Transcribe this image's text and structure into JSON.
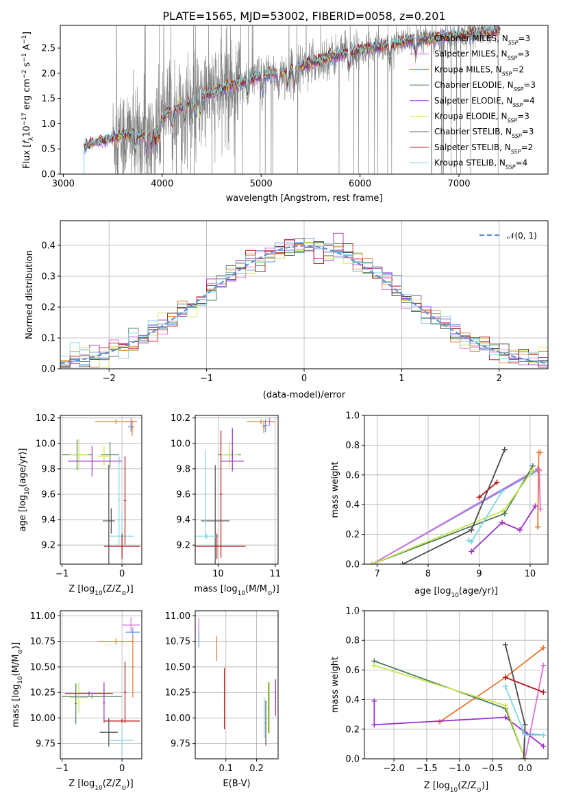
{
  "colors": {
    "Chabrier MILES": "#6495ed",
    "Salpeter MILES": "#da70d6",
    "Kroupa MILES": "#e8782a",
    "Chabrier ELODIE": "#4e7d5a",
    "Salpeter ELODIE": "#9b30c8",
    "Kroupa ELODIE": "#c8e650",
    "Chabrier STELIB": "#4a4a4a",
    "Salpeter STELIB": "#b31313",
    "Kroupa STELIB": "#7fd6e2",
    "data": "#808080",
    "normal": "#5b8fd9"
  },
  "chart_data": [
    {
      "id": "spectrum",
      "type": "line",
      "title": "PLATE=1565, MJD=53002, FIBERID=0058, z=0.201",
      "xlabel": "wavelength [Angstrom, rest frame]",
      "ylabel": "Flux [f_λ10^-17 erg cm^-2 s^-1 A^-1]",
      "xlim": [
        2970,
        7900
      ],
      "ylim": [
        0,
        2.95
      ],
      "xticks": [
        3000,
        4000,
        5000,
        6000,
        7000
      ],
      "yticks": [
        0.0,
        0.5,
        1.0,
        1.5,
        2.0,
        2.5
      ],
      "grid": false,
      "legend_position": "top-right",
      "legend": [
        {
          "label": "Chabrier MILES, N",
          "sub": "SSP",
          "tail": "=3",
          "color": "#6495ed"
        },
        {
          "label": "Salpeter MILES, N",
          "sub": "SSP",
          "tail": "=3",
          "color": "#da70d6"
        },
        {
          "label": "Kroupa MILES, N",
          "sub": "SSP",
          "tail": "=2",
          "color": "#e8782a"
        },
        {
          "label": "Chabrier ELODIE, N",
          "sub": "SSP",
          "tail": "=3",
          "color": "#4e7d5a"
        },
        {
          "label": "Salpeter ELODIE, N",
          "sub": "SSP",
          "tail": "=4",
          "color": "#9b30c8"
        },
        {
          "label": "Kroupa ELODIE, N",
          "sub": "SSP",
          "tail": "=3",
          "color": "#c8e650"
        },
        {
          "label": "Chabrier STELIB, N",
          "sub": "SSP",
          "tail": "=3",
          "color": "#4a4a4a"
        },
        {
          "label": "Salpeter STELIB, N",
          "sub": "SSP",
          "tail": "=2",
          "color": "#b31313"
        },
        {
          "label": "Kroupa STELIB, N",
          "sub": "SSP",
          "tail": "=4",
          "color": "#7fd6e2"
        }
      ],
      "continuum": [
        [
          3210,
          0.55
        ],
        [
          3300,
          0.6
        ],
        [
          3500,
          0.72
        ],
        [
          3700,
          0.8
        ],
        [
          3850,
          0.75
        ],
        [
          3950,
          0.95
        ],
        [
          4050,
          1.2
        ],
        [
          4250,
          1.4
        ],
        [
          4500,
          1.6
        ],
        [
          4750,
          1.8
        ],
        [
          5000,
          1.95
        ],
        [
          5250,
          2.05
        ],
        [
          5500,
          2.2
        ],
        [
          5750,
          2.35
        ],
        [
          6000,
          2.45
        ],
        [
          6250,
          2.55
        ],
        [
          6500,
          2.65
        ],
        [
          6750,
          2.7
        ],
        [
          7000,
          2.75
        ],
        [
          7250,
          2.8
        ],
        [
          7420,
          2.85
        ]
      ],
      "data_range": [
        3500,
        7400
      ],
      "models_range": [
        3210,
        7420
      ]
    },
    {
      "id": "residuals",
      "type": "histogram",
      "xlabel": "(data-model)/error",
      "ylabel": "Normed distribution",
      "xlim": [
        -2.5,
        2.5
      ],
      "ylim": [
        0,
        0.48
      ],
      "xticks": [
        -2,
        -1,
        0,
        1,
        2
      ],
      "yticks": [
        0.0,
        0.1,
        0.2,
        0.3,
        0.4
      ],
      "grid": true,
      "legend_position": "top-right",
      "legend": [
        {
          "label": "𝒩(0, 1)",
          "color": "#5b8fd9",
          "style": "dashed"
        }
      ],
      "bin_width": 0.1,
      "normal_curve": {
        "mean": 0,
        "sigma": 1
      }
    },
    {
      "id": "age-vs-metallicity",
      "type": "errorbar",
      "xlabel": "Z [log10(Z/Z⊙)]",
      "ylabel": "age  [log10(age/yr)]",
      "xlim": [
        -1.03,
        0.33
      ],
      "ylim": [
        9.05,
        10.22
      ],
      "xticks": [
        -1,
        0
      ],
      "yticks": [
        9.2,
        9.4,
        9.6,
        9.8,
        10.0,
        10.2
      ],
      "grid": true,
      "points": [
        {
          "series": "Salpeter MILES",
          "x": 0.15,
          "y": 10.17,
          "xerr": 0.1,
          "yerr": 0.03
        },
        {
          "series": "Kroupa MILES",
          "x": -0.1,
          "y": 10.17,
          "xerr": 0.35,
          "yerr": 0.02
        },
        {
          "series": "Chabrier MILES",
          "x": 0.15,
          "y": 10.13,
          "xerr": 0.05,
          "yerr": 0.04
        },
        {
          "series": "Kroupa MILES",
          "x": 0.17,
          "y": 10.12,
          "xerr": 0.02,
          "yerr": 0.06
        },
        {
          "series": "Chabrier ELODIE",
          "x": -0.75,
          "y": 9.91,
          "xerr": 0.25,
          "yerr": 0.12
        },
        {
          "series": "Kroupa ELODIE",
          "x": -0.72,
          "y": 9.91,
          "xerr": 0.15,
          "yerr": 0.12
        },
        {
          "series": "Chabrier ELODIE",
          "x": -0.2,
          "y": 9.91,
          "xerr": 0.15,
          "yerr": 0.1
        },
        {
          "series": "Kroupa ELODIE",
          "x": -0.3,
          "y": 9.9,
          "xerr": 0.1,
          "yerr": 0.08
        },
        {
          "series": "Salpeter ELODIE",
          "x": -0.5,
          "y": 9.86,
          "xerr": 0.4,
          "yerr": 0.12
        },
        {
          "series": "Salpeter ELODIE",
          "x": -0.05,
          "y": 9.86,
          "xerr": 0.05,
          "yerr": 0.02
        },
        {
          "series": "Chabrier STELIB",
          "x": -0.22,
          "y": 9.39,
          "xerr": 0.1,
          "yerr": 0.44
        },
        {
          "series": "Chabrier STELIB",
          "x": -0.18,
          "y": 9.39,
          "xerr": 0.02,
          "yerr": 0.1
        },
        {
          "series": "Kroupa STELIB",
          "x": 0.0,
          "y": 9.27,
          "xerr": 0.2,
          "yerr": 0.2
        },
        {
          "series": "Kroupa STELIB",
          "x": -0.05,
          "y": 9.55,
          "xerr": 0.02,
          "yerr": 0.35
        },
        {
          "series": "Salpeter STELIB",
          "x": 0.0,
          "y": 9.19,
          "xerr": 0.3,
          "yerr": 0.1
        },
        {
          "series": "Salpeter STELIB",
          "x": 0.05,
          "y": 9.55,
          "xerr": 0.02,
          "yerr": 0.35
        }
      ]
    },
    {
      "id": "age-vs-mass",
      "type": "errorbar",
      "xlabel": "mass [log10(M/M⊙)]",
      "ylabel": "",
      "xlim": [
        9.6,
        11.05
      ],
      "ylim": [
        9.05,
        10.22
      ],
      "xticks": [
        10,
        11
      ],
      "yticks": [
        9.2,
        9.4,
        9.6,
        9.8,
        10.0,
        10.2
      ],
      "grid": true,
      "points": [
        {
          "series": "Salpeter MILES",
          "x": 10.9,
          "y": 10.17,
          "xerr": 0.1,
          "yerr": 0.03
        },
        {
          "series": "Kroupa MILES",
          "x": 10.75,
          "y": 10.17,
          "xerr": 0.25,
          "yerr": 0.02
        },
        {
          "series": "Chabrier MILES",
          "x": 10.83,
          "y": 10.14,
          "xerr": 0.05,
          "yerr": 0.05
        },
        {
          "series": "Kroupa MILES",
          "x": 10.8,
          "y": 10.13,
          "xerr": 0.02,
          "yerr": 0.05
        },
        {
          "series": "Chabrier ELODIE",
          "x": 10.2,
          "y": 9.91,
          "xerr": 0.2,
          "yerr": 0.05
        },
        {
          "series": "Kroupa ELODIE",
          "x": 10.2,
          "y": 9.91,
          "xerr": 0.15,
          "yerr": 0.1
        },
        {
          "series": "Salpeter ELODIE",
          "x": 10.25,
          "y": 9.86,
          "xerr": 0.2,
          "yerr": 0.08
        },
        {
          "series": "Salpeter ELODIE",
          "x": 10.25,
          "y": 10.0,
          "xerr": 0.02,
          "yerr": 0.12
        },
        {
          "series": "Chabrier STELIB",
          "x": 9.95,
          "y": 9.39,
          "xerr": 0.25,
          "yerr": 0.44
        },
        {
          "series": "Kroupa STELIB",
          "x": 9.8,
          "y": 9.27,
          "xerr": 0.2,
          "yerr": 0.02
        },
        {
          "series": "Kroupa STELIB",
          "x": 9.78,
          "y": 9.6,
          "xerr": 0.02,
          "yerr": 0.35
        },
        {
          "series": "Salpeter STELIB",
          "x": 9.98,
          "y": 9.19,
          "xerr": 0.5,
          "yerr": 0.1
        },
        {
          "series": "Salpeter STELIB",
          "x": 10.05,
          "y": 9.6,
          "xerr": 0.02,
          "yerr": 0.5
        }
      ]
    },
    {
      "id": "weight-vs-age",
      "type": "line",
      "xlabel": "age  [log10(age/yr)]",
      "ylabel": "mass weight",
      "xlim": [
        6.75,
        10.35
      ],
      "ylim": [
        0,
        1.0
      ],
      "xticks": [
        7,
        8,
        9,
        10
      ],
      "yticks": [
        0.0,
        0.2,
        0.4,
        0.6,
        0.8,
        1.0
      ],
      "grid": true,
      "series": [
        {
          "name": "Chabrier MILES",
          "x": [
            6.9,
            10.15
          ],
          "y": [
            0.0,
            0.63
          ]
        },
        {
          "name": "Salpeter MILES",
          "x": [
            6.9,
            10.15,
            10.18,
            10.2
          ],
          "y": [
            0.0,
            0.64,
            0.63,
            0.37
          ]
        },
        {
          "name": "Kroupa MILES",
          "x": [
            10.15,
            10.17,
            10.2
          ],
          "y": [
            0.25,
            0.75,
            0.75
          ]
        },
        {
          "name": "Chabrier ELODIE",
          "x": [
            6.9,
            9.5,
            10.05
          ],
          "y": [
            0.0,
            0.34,
            0.66
          ]
        },
        {
          "name": "Salpeter ELODIE",
          "x": [
            8.85,
            9.45,
            9.8,
            10.1
          ],
          "y": [
            0.085,
            0.28,
            0.23,
            0.39
          ]
        },
        {
          "name": "Kroupa ELODIE",
          "x": [
            6.9,
            9.48,
            10.05
          ],
          "y": [
            0.0,
            0.36,
            0.63
          ]
        },
        {
          "name": "Chabrier STELIB",
          "x": [
            7.5,
            8.85,
            9.5
          ],
          "y": [
            0.0,
            0.23,
            0.77
          ]
        },
        {
          "name": "Salpeter STELIB",
          "x": [
            9.0,
            9.35
          ],
          "y": [
            0.45,
            0.55
          ]
        },
        {
          "name": "Kroupa STELIB",
          "x": [
            8.8,
            8.85,
            9.45
          ],
          "y": [
            0.16,
            0.15,
            0.49
          ]
        }
      ]
    },
    {
      "id": "mass-vs-metallicity",
      "type": "errorbar",
      "xlabel": "Z [log10(Z/Z⊙)]",
      "ylabel": "mass [log10(M/M⊙)]",
      "xlim": [
        -1.03,
        0.33
      ],
      "ylim": [
        9.6,
        11.05
      ],
      "xticks": [
        -1,
        0
      ],
      "yticks": [
        9.75,
        10.0,
        10.25,
        10.5,
        10.75,
        11.0
      ],
      "grid": true,
      "points": [
        {
          "series": "Salpeter MILES",
          "x": 0.15,
          "y": 10.91,
          "xerr": 0.15,
          "yerr": 0.08
        },
        {
          "series": "Chabrier MILES",
          "x": 0.18,
          "y": 10.84,
          "xerr": 0.12,
          "yerr": 0.05
        },
        {
          "series": "Kroupa MILES",
          "x": -0.1,
          "y": 10.75,
          "xerr": 0.3,
          "yerr": 0.03
        },
        {
          "series": "Kroupa MILES",
          "x": 0.18,
          "y": 10.5,
          "xerr": 0.02,
          "yerr": 0.3
        },
        {
          "series": "Chabrier ELODIE",
          "x": -0.5,
          "y": 10.21,
          "xerr": 0.5,
          "yerr": 0.02
        },
        {
          "series": "Kroupa ELODIE",
          "x": -0.72,
          "y": 10.2,
          "xerr": 0.15,
          "yerr": 0.15
        },
        {
          "series": "Chabrier ELODIE",
          "x": -0.77,
          "y": 10.14,
          "xerr": 0.02,
          "yerr": 0.2
        },
        {
          "series": "Salpeter ELODIE",
          "x": -0.55,
          "y": 10.24,
          "xerr": 0.4,
          "yerr": 0.02
        },
        {
          "series": "Salpeter ELODIE",
          "x": -0.3,
          "y": 10.15,
          "xerr": 0.02,
          "yerr": 0.2
        },
        {
          "series": "Salpeter STELIB",
          "x": 0.0,
          "y": 9.97,
          "xerr": 0.3,
          "yerr": 0.02
        },
        {
          "series": "Salpeter STELIB",
          "x": 0.05,
          "y": 10.25,
          "xerr": 0.02,
          "yerr": 0.3
        },
        {
          "series": "Chabrier STELIB",
          "x": -0.22,
          "y": 9.86,
          "xerr": 0.15,
          "yerr": 0.14
        },
        {
          "series": "Kroupa STELIB",
          "x": 0.0,
          "y": 9.78,
          "xerr": 0.2,
          "yerr": 0.15
        }
      ]
    },
    {
      "id": "mass-vs-ebv",
      "type": "errorbar",
      "xlabel": "E(B-V)",
      "ylabel": "",
      "xlim": [
        0.0,
        0.27
      ],
      "ylim": [
        9.6,
        11.05
      ],
      "xticks": [
        0.1,
        0.2
      ],
      "yticks": [
        9.75,
        10.0,
        10.25,
        10.5,
        10.75,
        11.0
      ],
      "grid": true,
      "points": [
        {
          "series": "Salpeter MILES",
          "x": 0.012,
          "y": 10.88,
          "xerr": 0.002,
          "yerr": 0.1
        },
        {
          "series": "Chabrier MILES",
          "x": 0.012,
          "y": 10.77,
          "xerr": 0.002,
          "yerr": 0.08
        },
        {
          "series": "Kroupa MILES",
          "x": 0.07,
          "y": 10.68,
          "xerr": 0.002,
          "yerr": 0.12
        },
        {
          "series": "Salpeter STELIB",
          "x": 0.095,
          "y": 10.19,
          "xerr": 0.002,
          "yerr": 0.3
        },
        {
          "series": "Kroupa STELIB",
          "x": 0.225,
          "y": 10.0,
          "xerr": 0.002,
          "yerr": 0.2
        },
        {
          "series": "Chabrier STELIB",
          "x": 0.23,
          "y": 9.95,
          "xerr": 0.002,
          "yerr": 0.22
        },
        {
          "series": "Chabrier ELODIE",
          "x": 0.238,
          "y": 10.1,
          "xerr": 0.002,
          "yerr": 0.25
        },
        {
          "series": "Kroupa ELODIE",
          "x": 0.242,
          "y": 10.1,
          "xerr": 0.002,
          "yerr": 0.25
        },
        {
          "series": "Salpeter ELODIE",
          "x": 0.262,
          "y": 10.2,
          "xerr": 0.002,
          "yerr": 0.18
        }
      ]
    },
    {
      "id": "weight-vs-metallicity",
      "type": "line",
      "xlabel": "Z [log10(Z/Z⊙)]",
      "ylabel": "mass weight",
      "xlim": [
        -2.45,
        0.35
      ],
      "ylim": [
        0,
        1.0
      ],
      "xticks": [
        -2.0,
        -1.5,
        -1.0,
        -0.5,
        0.0
      ],
      "yticks": [
        0.0,
        0.2,
        0.4,
        0.6,
        0.8,
        1.0
      ],
      "grid": true,
      "series": [
        {
          "name": "Chabrier MILES",
          "x": [
            -0.02,
            0.0,
            0.28
          ],
          "y": [
            0.0,
            0.17,
            0.16
          ]
        },
        {
          "name": "Salpeter MILES",
          "x": [
            0.0,
            0.28,
            0.28
          ],
          "y": [
            0.0,
            0.63,
            0.63
          ]
        },
        {
          "name": "Kroupa MILES",
          "x": [
            -1.3,
            -0.3,
            0.28
          ],
          "y": [
            0.25,
            0.55,
            0.75
          ]
        },
        {
          "name": "Chabrier ELODIE",
          "x": [
            -2.3,
            -0.3,
            0.0
          ],
          "y": [
            0.66,
            0.34,
            0.0
          ]
        },
        {
          "name": "Salpeter ELODIE",
          "x": [
            -2.3,
            -2.3,
            -0.3,
            0.0,
            0.28
          ],
          "y": [
            0.39,
            0.23,
            0.28,
            0.18,
            0.085
          ]
        },
        {
          "name": "Kroupa ELODIE",
          "x": [
            -2.3,
            -0.3,
            0.0
          ],
          "y": [
            0.63,
            0.36,
            0.0
          ]
        },
        {
          "name": "Chabrier STELIB",
          "x": [
            -0.3,
            0.0,
            -0.02
          ],
          "y": [
            0.77,
            0.23,
            0.0
          ]
        },
        {
          "name": "Salpeter STELIB",
          "x": [
            -0.3,
            0.28
          ],
          "y": [
            0.55,
            0.45
          ]
        },
        {
          "name": "Kroupa STELIB",
          "x": [
            -0.3,
            0.0,
            0.28
          ],
          "y": [
            0.49,
            0.16,
            0.16
          ]
        }
      ]
    }
  ]
}
